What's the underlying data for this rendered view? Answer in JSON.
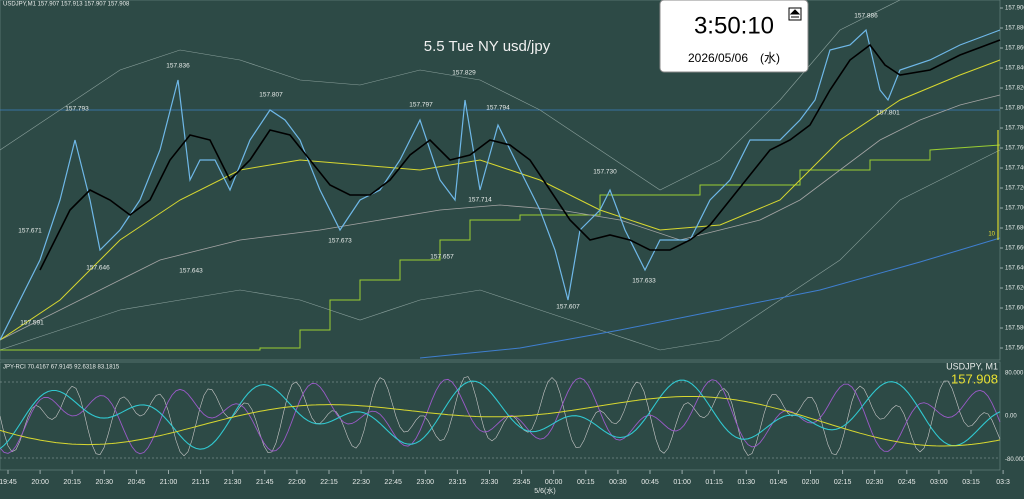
{
  "header": {
    "symbol_info": "USDJPY,M1  157.907 157.913 157.907 157.908",
    "title": "5.5 Tue NY usd/jpy"
  },
  "clock": {
    "time": "3:50:10",
    "date": "2026/05/06　(水)"
  },
  "price_axis": {
    "ylim": [
      157.548,
      157.908
    ],
    "ticks": [
      {
        "value": 157.9,
        "label": "157.900"
      },
      {
        "value": 157.88,
        "label": "157.880"
      },
      {
        "value": 157.86,
        "label": "157.860"
      },
      {
        "value": 157.84,
        "label": "157.840"
      },
      {
        "value": 157.82,
        "label": "157.820"
      },
      {
        "value": 157.8,
        "label": "157.800"
      },
      {
        "value": 157.78,
        "label": "157.780"
      },
      {
        "value": 157.76,
        "label": "157.760"
      },
      {
        "value": 157.74,
        "label": "157.740"
      },
      {
        "value": 157.72,
        "label": "157.720"
      },
      {
        "value": 157.7,
        "label": "157.700"
      },
      {
        "value": 157.68,
        "label": "157.680"
      },
      {
        "value": 157.66,
        "label": "157.660"
      },
      {
        "value": 157.64,
        "label": "157.640"
      },
      {
        "value": 157.62,
        "label": "157.620"
      },
      {
        "value": 157.6,
        "label": "157.600"
      },
      {
        "value": 157.58,
        "label": "157.580"
      },
      {
        "value": 157.56,
        "label": "157.560"
      }
    ]
  },
  "price_labels": [
    {
      "value": 157.671,
      "label": "157.671"
    },
    {
      "value": 157.591,
      "label": "157.591"
    },
    {
      "value": 157.793,
      "label": "157.793"
    },
    {
      "value": 157.646,
      "label": "157.646"
    },
    {
      "value": 157.836,
      "label": "157.836"
    },
    {
      "value": 157.643,
      "label": "157.643"
    },
    {
      "value": 157.807,
      "label": "157.807"
    },
    {
      "value": 157.673,
      "label": "157.673"
    },
    {
      "value": 157.797,
      "label": "157.797"
    },
    {
      "value": 157.657,
      "label": "157.657"
    },
    {
      "value": 157.829,
      "label": "157.829"
    },
    {
      "value": 157.714,
      "label": "157.714"
    },
    {
      "value": 157.794,
      "label": "157.794"
    },
    {
      "value": 157.73,
      "label": "157.730"
    },
    {
      "value": 157.607,
      "label": "157.607"
    },
    {
      "value": 157.633,
      "label": "157.633"
    },
    {
      "value": 157.886,
      "label": "157.886"
    },
    {
      "value": 157.801,
      "label": "157.801"
    }
  ],
  "indicator": {
    "label": "JPY-RCI 70.4167 67.9145 92.6318 83.1815",
    "symbol": "USDJPY, M1",
    "price": "157.908",
    "level_label": "10",
    "ylim": [
      -100,
      100
    ],
    "ticks": [
      {
        "value": 80,
        "label": "80.000"
      },
      {
        "value": 0,
        "label": "0.00"
      },
      {
        "value": -80,
        "label": "-80.000"
      }
    ]
  },
  "time_axis": {
    "labels": [
      "19:45",
      "20:00",
      "20:15",
      "20:30",
      "20:45",
      "21:00",
      "21:15",
      "21:30",
      "21:45",
      "22:00",
      "22:15",
      "22:30",
      "22:45",
      "23:00",
      "23:15",
      "23:30",
      "23:45",
      "00:00",
      "00:15",
      "00:30",
      "00:45",
      "01:00",
      "01:15",
      "01:30",
      "01:45",
      "02:00",
      "02:15",
      "02:30",
      "02:45",
      "03:00",
      "03:15",
      "03:3"
    ],
    "date": "5/6(水)"
  }
}
